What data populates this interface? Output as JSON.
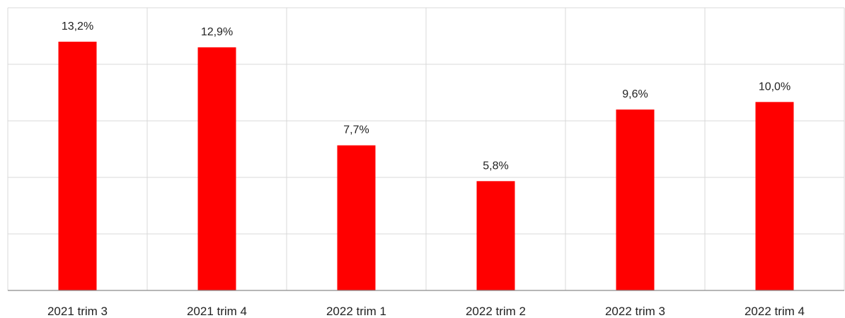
{
  "chart_data": {
    "type": "bar",
    "categories": [
      "2021 trim 3",
      "2021 trim 4",
      "2022 trim 1",
      "2022 trim 2",
      "2022 trim 3",
      "2022 trim 4"
    ],
    "values": [
      13.2,
      12.9,
      7.7,
      5.8,
      9.6,
      10.0
    ],
    "data_labels": [
      "13,2%",
      "12,9%",
      "7,7%",
      "5,8%",
      "9,6%",
      "10,0%"
    ],
    "title": "",
    "xlabel": "",
    "ylabel": "",
    "ylim": [
      0,
      15
    ],
    "grid": true,
    "colors": {
      "bar": "#ff0000"
    }
  }
}
